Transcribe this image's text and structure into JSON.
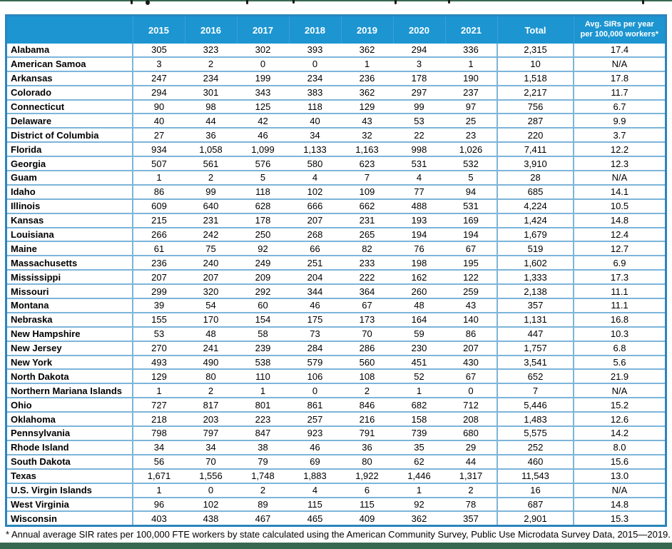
{
  "colors": {
    "header_bg": "#1c95d1",
    "header_text": "#ffffff",
    "table_border": "#2b85bd",
    "grid_line": "#7cb5da",
    "accent_bar": "#386850"
  },
  "table": {
    "columns": [
      "",
      "2015",
      "2016",
      "2017",
      "2018",
      "2019",
      "2020",
      "2021",
      "Total",
      "Avg. SIRs per year per 100,000 workers*"
    ],
    "rows": [
      {
        "state": "Alabama",
        "values": [
          "305",
          "323",
          "302",
          "393",
          "362",
          "294",
          "336",
          "2,315",
          "17.4"
        ]
      },
      {
        "state": "American Samoa",
        "values": [
          "3",
          "2",
          "0",
          "0",
          "1",
          "3",
          "1",
          "10",
          "N/A"
        ]
      },
      {
        "state": "Arkansas",
        "values": [
          "247",
          "234",
          "199",
          "234",
          "236",
          "178",
          "190",
          "1,518",
          "17.8"
        ]
      },
      {
        "state": "Colorado",
        "values": [
          "294",
          "301",
          "343",
          "383",
          "362",
          "297",
          "237",
          "2,217",
          "11.7"
        ]
      },
      {
        "state": "Connecticut",
        "values": [
          "90",
          "98",
          "125",
          "118",
          "129",
          "99",
          "97",
          "756",
          "6.7"
        ]
      },
      {
        "state": "Delaware",
        "values": [
          "40",
          "44",
          "42",
          "40",
          "43",
          "53",
          "25",
          "287",
          "9.9"
        ]
      },
      {
        "state": "District of Columbia",
        "values": [
          "27",
          "36",
          "46",
          "34",
          "32",
          "22",
          "23",
          "220",
          "3.7"
        ]
      },
      {
        "state": "Florida",
        "values": [
          "934",
          "1,058",
          "1,099",
          "1,133",
          "1,163",
          "998",
          "1,026",
          "7,411",
          "12.2"
        ]
      },
      {
        "state": "Georgia",
        "values": [
          "507",
          "561",
          "576",
          "580",
          "623",
          "531",
          "532",
          "3,910",
          "12.3"
        ]
      },
      {
        "state": "Guam",
        "values": [
          "1",
          "2",
          "5",
          "4",
          "7",
          "4",
          "5",
          "28",
          "N/A"
        ]
      },
      {
        "state": "Idaho",
        "values": [
          "86",
          "99",
          "118",
          "102",
          "109",
          "77",
          "94",
          "685",
          "14.1"
        ]
      },
      {
        "state": "Illinois",
        "values": [
          "609",
          "640",
          "628",
          "666",
          "662",
          "488",
          "531",
          "4,224",
          "10.5"
        ]
      },
      {
        "state": "Kansas",
        "values": [
          "215",
          "231",
          "178",
          "207",
          "231",
          "193",
          "169",
          "1,424",
          "14.8"
        ]
      },
      {
        "state": "Louisiana",
        "values": [
          "266",
          "242",
          "250",
          "268",
          "265",
          "194",
          "194",
          "1,679",
          "12.4"
        ]
      },
      {
        "state": "Maine",
        "values": [
          "61",
          "75",
          "92",
          "66",
          "82",
          "76",
          "67",
          "519",
          "12.7"
        ]
      },
      {
        "state": "Massachusetts",
        "values": [
          "236",
          "240",
          "249",
          "251",
          "233",
          "198",
          "195",
          "1,602",
          "6.9"
        ]
      },
      {
        "state": "Mississippi",
        "values": [
          "207",
          "207",
          "209",
          "204",
          "222",
          "162",
          "122",
          "1,333",
          "17.3"
        ]
      },
      {
        "state": "Missouri",
        "values": [
          "299",
          "320",
          "292",
          "344",
          "364",
          "260",
          "259",
          "2,138",
          "11.1"
        ]
      },
      {
        "state": "Montana",
        "values": [
          "39",
          "54",
          "60",
          "46",
          "67",
          "48",
          "43",
          "357",
          "11.1"
        ]
      },
      {
        "state": "Nebraska",
        "values": [
          "155",
          "170",
          "154",
          "175",
          "173",
          "164",
          "140",
          "1,131",
          "16.8"
        ]
      },
      {
        "state": "New Hampshire",
        "values": [
          "53",
          "48",
          "58",
          "73",
          "70",
          "59",
          "86",
          "447",
          "10.3"
        ]
      },
      {
        "state": "New Jersey",
        "values": [
          "270",
          "241",
          "239",
          "284",
          "286",
          "230",
          "207",
          "1,757",
          "6.8"
        ]
      },
      {
        "state": "New York",
        "values": [
          "493",
          "490",
          "538",
          "579",
          "560",
          "451",
          "430",
          "3,541",
          "5.6"
        ]
      },
      {
        "state": "North Dakota",
        "values": [
          "129",
          "80",
          "110",
          "106",
          "108",
          "52",
          "67",
          "652",
          "21.9"
        ]
      },
      {
        "state": "Northern Mariana Islands",
        "values": [
          "1",
          "2",
          "1",
          "0",
          "2",
          "1",
          "0",
          "7",
          "N/A"
        ]
      },
      {
        "state": "Ohio",
        "values": [
          "727",
          "817",
          "801",
          "861",
          "846",
          "682",
          "712",
          "5,446",
          "15.2"
        ]
      },
      {
        "state": "Oklahoma",
        "values": [
          "218",
          "203",
          "223",
          "257",
          "216",
          "158",
          "208",
          "1,483",
          "12.6"
        ]
      },
      {
        "state": "Pennsylvania",
        "values": [
          "798",
          "797",
          "847",
          "923",
          "791",
          "739",
          "680",
          "5,575",
          "14.2"
        ]
      },
      {
        "state": "Rhode Island",
        "values": [
          "34",
          "34",
          "38",
          "46",
          "36",
          "35",
          "29",
          "252",
          "8.0"
        ]
      },
      {
        "state": "South Dakota",
        "values": [
          "56",
          "70",
          "79",
          "69",
          "80",
          "62",
          "44",
          "460",
          "15.6"
        ]
      },
      {
        "state": "Texas",
        "values": [
          "1,671",
          "1,556",
          "1,748",
          "1,883",
          "1,922",
          "1,446",
          "1,317",
          "11,543",
          "13.0"
        ]
      },
      {
        "state": "U.S. Virgin Islands",
        "values": [
          "1",
          "0",
          "2",
          "4",
          "6",
          "1",
          "2",
          "16",
          "N/A"
        ]
      },
      {
        "state": "West Virginia",
        "values": [
          "96",
          "102",
          "89",
          "115",
          "115",
          "92",
          "78",
          "687",
          "14.8"
        ]
      },
      {
        "state": "Wisconsin",
        "values": [
          "403",
          "438",
          "467",
          "465",
          "409",
          "362",
          "357",
          "2,901",
          "15.3"
        ]
      }
    ]
  },
  "footnote": "* Annual average SIR rates per 100,000 FTE workers by state calculated using the American Community Survey, Public Use Microdata Survey Data, 2015—2019."
}
